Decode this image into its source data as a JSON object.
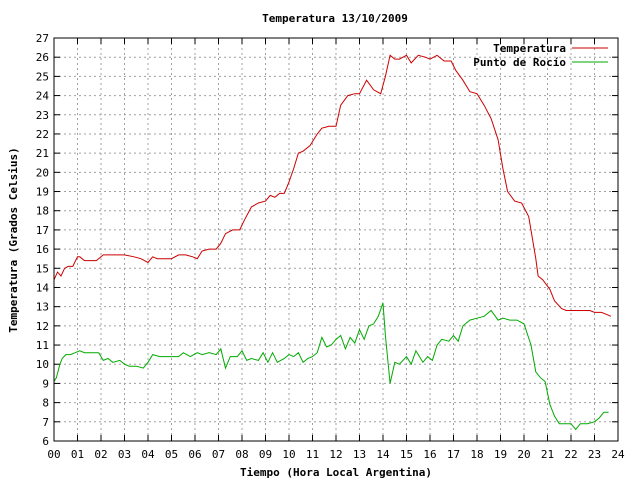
{
  "chart_data": {
    "type": "line",
    "title": "Temperatura 13/10/2009",
    "xlabel": "Tiempo (Hora Local Argentina)",
    "ylabel": "Temperatura (Grados Celsius)",
    "xlim": [
      0,
      24
    ],
    "ylim": [
      6,
      27
    ],
    "x_ticks": [
      "00",
      "01",
      "02",
      "03",
      "04",
      "05",
      "06",
      "07",
      "08",
      "09",
      "10",
      "11",
      "12",
      "13",
      "14",
      "15",
      "16",
      "17",
      "18",
      "19",
      "20",
      "21",
      "22",
      "23",
      "24"
    ],
    "y_ticks": [
      6,
      7,
      8,
      9,
      10,
      11,
      12,
      13,
      14,
      15,
      16,
      17,
      18,
      19,
      20,
      21,
      22,
      23,
      24,
      25,
      26,
      27
    ],
    "grid": true,
    "legend_position": "top-right",
    "series": [
      {
        "name": "Temperatura",
        "color": "#cc0000",
        "x": [
          0.0,
          0.15,
          0.3,
          0.45,
          0.6,
          0.8,
          1.0,
          1.1,
          1.3,
          1.5,
          1.8,
          2.1,
          2.3,
          2.6,
          3.0,
          3.4,
          3.7,
          4.0,
          4.2,
          4.4,
          4.7,
          5.0,
          5.3,
          5.6,
          5.9,
          6.1,
          6.3,
          6.6,
          6.9,
          7.1,
          7.3,
          7.6,
          7.9,
          8.1,
          8.4,
          8.7,
          9.0,
          9.2,
          9.4,
          9.6,
          9.8,
          10.0,
          10.2,
          10.4,
          10.6,
          10.9,
          11.2,
          11.4,
          11.7,
          12.0,
          12.2,
          12.5,
          12.8,
          13.0,
          13.3,
          13.6,
          13.9,
          14.1,
          14.3,
          14.5,
          14.7,
          15.0,
          15.2,
          15.5,
          15.8,
          16.0,
          16.3,
          16.6,
          16.9,
          17.1,
          17.4,
          17.7,
          18.0,
          18.3,
          18.6,
          18.9,
          19.1,
          19.3,
          19.6,
          19.9,
          20.2,
          20.5,
          20.6,
          20.8,
          21.1,
          21.3,
          21.6,
          21.8,
          22.0,
          22.4,
          22.8,
          23.0,
          23.3,
          23.5,
          23.7
        ],
        "values": [
          14.4,
          14.8,
          14.6,
          15.0,
          15.1,
          15.1,
          15.6,
          15.6,
          15.4,
          15.4,
          15.4,
          15.7,
          15.7,
          15.7,
          15.7,
          15.6,
          15.5,
          15.3,
          15.6,
          15.5,
          15.5,
          15.5,
          15.7,
          15.7,
          15.6,
          15.5,
          15.9,
          16.0,
          16.0,
          16.3,
          16.8,
          17.0,
          17.0,
          17.5,
          18.2,
          18.4,
          18.5,
          18.8,
          18.7,
          18.9,
          18.9,
          19.5,
          20.2,
          21.0,
          21.1,
          21.4,
          22.0,
          22.3,
          22.4,
          22.4,
          23.5,
          24.0,
          24.1,
          24.1,
          24.8,
          24.3,
          24.1,
          25.0,
          26.1,
          25.9,
          25.9,
          26.1,
          25.7,
          26.1,
          26.0,
          25.9,
          26.1,
          25.8,
          25.8,
          25.3,
          24.8,
          24.2,
          24.1,
          23.5,
          22.8,
          21.7,
          20.2,
          19.0,
          18.5,
          18.4,
          17.7,
          15.5,
          14.6,
          14.4,
          13.9,
          13.3,
          12.9,
          12.8,
          12.8,
          12.8,
          12.8,
          12.7,
          12.7,
          12.6,
          12.5
        ]
      },
      {
        "name": "Punto de Rocío",
        "color": "#00aa00",
        "x": [
          0.0,
          0.1,
          0.25,
          0.35,
          0.5,
          0.7,
          0.9,
          1.1,
          1.3,
          1.6,
          1.9,
          2.1,
          2.3,
          2.5,
          2.8,
          3.0,
          3.2,
          3.5,
          3.8,
          4.0,
          4.2,
          4.5,
          4.8,
          5.0,
          5.3,
          5.5,
          5.8,
          6.1,
          6.3,
          6.6,
          6.9,
          7.1,
          7.3,
          7.5,
          7.8,
          8.0,
          8.2,
          8.4,
          8.7,
          8.9,
          9.1,
          9.3,
          9.5,
          9.8,
          10.0,
          10.2,
          10.4,
          10.6,
          10.8,
          11.0,
          11.2,
          11.4,
          11.6,
          11.8,
          12.0,
          12.2,
          12.4,
          12.6,
          12.8,
          13.0,
          13.2,
          13.4,
          13.6,
          13.8,
          14.0,
          14.1,
          14.3,
          14.5,
          14.7,
          15.0,
          15.2,
          15.4,
          15.7,
          15.9,
          16.1,
          16.3,
          16.5,
          16.8,
          17.0,
          17.2,
          17.4,
          17.7,
          18.0,
          18.3,
          18.6,
          18.9,
          19.1,
          19.4,
          19.7,
          20.0,
          20.3,
          20.5,
          20.7,
          20.9,
          21.1,
          21.3,
          21.5,
          21.8,
          22.0,
          22.2,
          22.4,
          22.7,
          23.0,
          23.2,
          23.4,
          23.6
        ],
        "values": [
          9.1,
          9.3,
          10.0,
          10.3,
          10.5,
          10.5,
          10.6,
          10.7,
          10.6,
          10.6,
          10.6,
          10.2,
          10.3,
          10.1,
          10.2,
          10.0,
          9.9,
          9.9,
          9.8,
          10.1,
          10.5,
          10.4,
          10.4,
          10.4,
          10.4,
          10.6,
          10.4,
          10.6,
          10.5,
          10.6,
          10.5,
          10.8,
          9.8,
          10.4,
          10.4,
          10.7,
          10.2,
          10.3,
          10.2,
          10.6,
          10.1,
          10.6,
          10.1,
          10.3,
          10.5,
          10.4,
          10.6,
          10.1,
          10.3,
          10.4,
          10.6,
          11.4,
          10.9,
          11.0,
          11.3,
          11.5,
          10.8,
          11.4,
          11.1,
          11.8,
          11.3,
          12.0,
          12.1,
          12.5,
          13.2,
          11.5,
          9.0,
          10.1,
          10.0,
          10.4,
          10.0,
          10.7,
          10.1,
          10.4,
          10.2,
          11.0,
          11.3,
          11.2,
          11.5,
          11.2,
          12.0,
          12.3,
          12.4,
          12.5,
          12.8,
          12.3,
          12.4,
          12.3,
          12.3,
          12.1,
          11.0,
          9.6,
          9.3,
          9.1,
          7.9,
          7.3,
          6.9,
          6.9,
          6.9,
          6.6,
          6.9,
          6.9,
          7.0,
          7.2,
          7.5,
          7.5
        ]
      }
    ]
  }
}
